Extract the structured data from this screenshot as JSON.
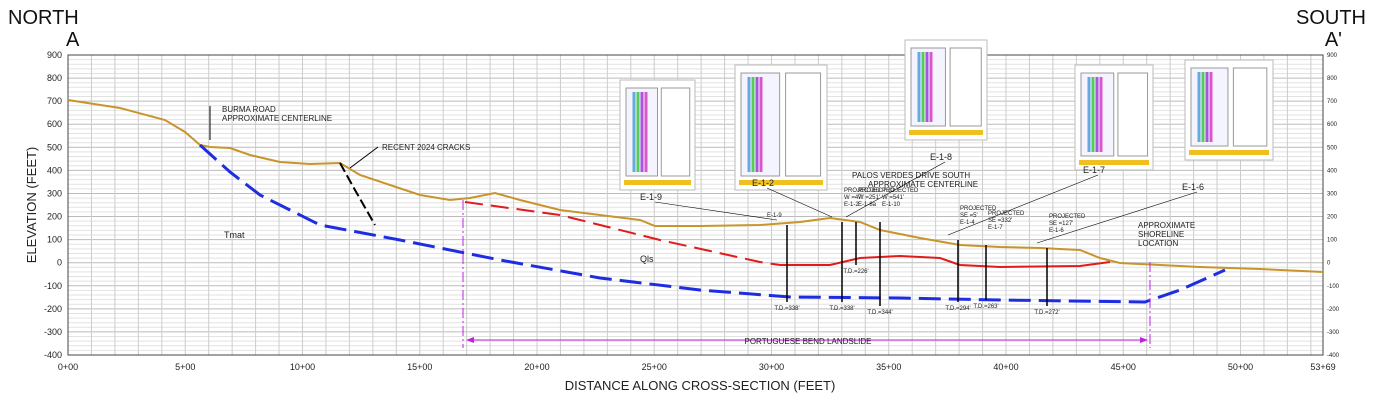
{
  "header": {
    "north": "NORTH",
    "a": "A",
    "south": "SOUTH",
    "a_prime": "A'"
  },
  "axes": {
    "y_label": "ELEVATION (FEET)",
    "x_label": "DISTANCE ALONG CROSS-SECTION (FEET)",
    "y_ticks": [
      "900",
      "800",
      "700",
      "600",
      "500",
      "400",
      "300",
      "200",
      "100",
      "0",
      "-100",
      "-200",
      "-300",
      "-400"
    ],
    "x_ticks": [
      "0+00",
      "5+00",
      "10+00",
      "15+00",
      "20+00",
      "25+00",
      "30+00",
      "35+00",
      "40+00",
      "45+00",
      "50+00",
      "53+69"
    ]
  },
  "annotations": [
    {
      "text": "BURMA ROAD"
    },
    {
      "text": "APPROXIMATE CENTERLINE"
    },
    {
      "text": "RECENT 2024 CRACKS"
    },
    {
      "text": "Tmat"
    },
    {
      "text": "Qls"
    },
    {
      "text": "PALOS VERDES DRIVE SOUTH"
    },
    {
      "text": "APPROXIMATE CENTERLINE"
    },
    {
      "text": "APPROXIMATE"
    },
    {
      "text": "SHORELINE"
    },
    {
      "text": "LOCATION"
    },
    {
      "text": "PORTUGUESE BEND LANDSLIDE"
    }
  ],
  "borings": [
    {
      "name": "E-1-9",
      "note": [
        "E-1-9"
      ],
      "td": "T.D.=338'"
    },
    {
      "name": "E-1-2",
      "note": [
        "PROJECTED",
        "W =47'",
        "E-1-2"
      ],
      "td": "T.D.=338'"
    },
    {
      "name": "E-1-8",
      "note": [
        "PROJECTED",
        "W =251'",
        "E-1-8a"
      ],
      "td": "T.D.=226'"
    },
    {
      "name": "",
      "note": [
        "PROJECTED",
        "W =541'",
        "E-1-10"
      ],
      "td": "T.D.=344'"
    },
    {
      "name": "E-1-7",
      "note": [
        "PROJECTED",
        "SE =5'",
        "E-1-4"
      ],
      "td": "T.D.=294'"
    },
    {
      "name": "",
      "note": [
        "PROJECTED",
        "SE =332'",
        "E-1-7"
      ],
      "td": "T.D.=263'"
    },
    {
      "name": "E-1-6",
      "note": [
        "PROJECTED",
        "SE =127'",
        "E-1-6"
      ],
      "td": "T.D.=272'"
    }
  ]
}
